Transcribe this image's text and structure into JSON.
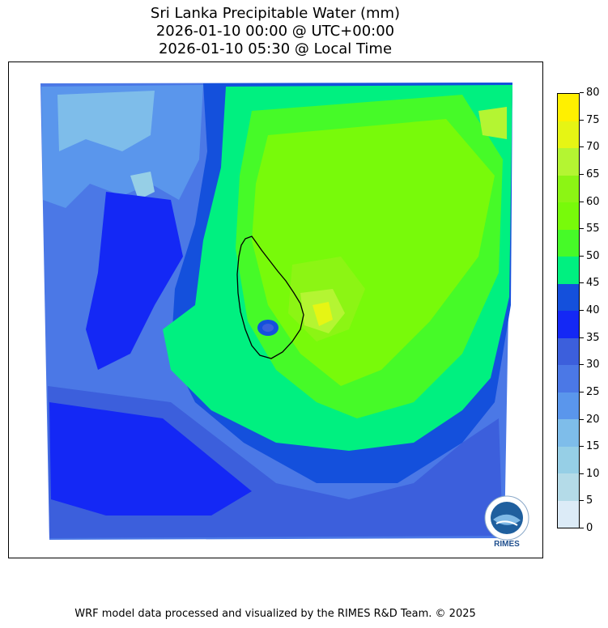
{
  "title": {
    "line1": "Sri Lanka Precipitable Water (mm)",
    "line2": "2026-01-10 00:00 @ UTC+00:00",
    "line3": "2026-01-10 05:30 @ Local Time"
  },
  "colorbar": {
    "levels": [
      0,
      5,
      10,
      15,
      20,
      25,
      30,
      35,
      40,
      45,
      50,
      55,
      60,
      65,
      70,
      75,
      80
    ],
    "tick_labels": [
      "0",
      "5",
      "10",
      "15",
      "20",
      "25",
      "30",
      "35",
      "40",
      "45",
      "50",
      "55",
      "60",
      "65",
      "70",
      "75",
      "80"
    ],
    "colors": [
      "#dcebf7",
      "#b4dbe8",
      "#96cfe6",
      "#7ebdea",
      "#5a96ec",
      "#4b78e6",
      "#3c5fdc",
      "#1428f5",
      "#1450dc",
      "#00f080",
      "#46fa28",
      "#78fa0a",
      "#8cf514",
      "#b4f532",
      "#e6f514",
      "#fff000",
      "#ffd200"
    ]
  },
  "logo": {
    "text": "RIMES"
  },
  "footer": "WRF model data processed and visualized by the RIMES R&D Team. © 2025"
}
